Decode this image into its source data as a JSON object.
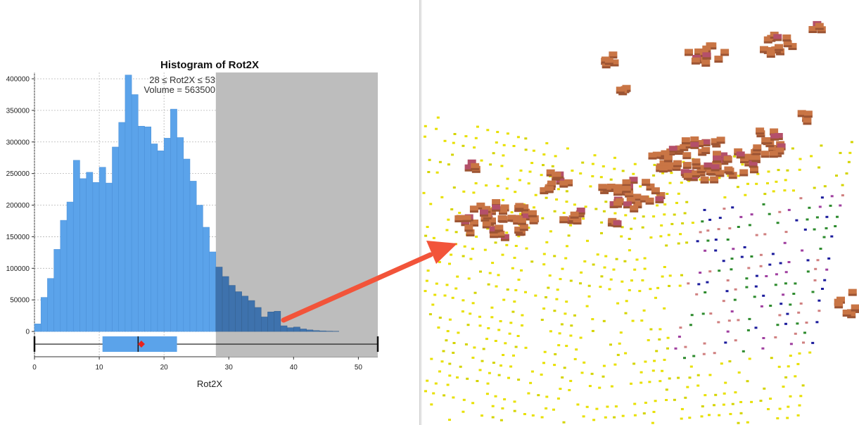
{
  "chart_data": {
    "type": "bar",
    "title": "Histogram of Rot2X",
    "xlabel": "Rot2X",
    "ylabel": "",
    "annotation": {
      "range_text": "28 ≤ Rot2X ≤ 53",
      "volume_text": "Volume = 563500"
    },
    "xlim": [
      0,
      53
    ],
    "ylim": [
      -40000,
      410000
    ],
    "xticks": [
      0,
      10,
      20,
      30,
      40,
      50
    ],
    "yticks": [
      0,
      50000,
      100000,
      150000,
      200000,
      250000,
      300000,
      350000,
      400000
    ],
    "grid": true,
    "bin_width": 1,
    "bin_starts": [
      0,
      1,
      2,
      3,
      4,
      5,
      6,
      7,
      8,
      9,
      10,
      11,
      12,
      13,
      14,
      15,
      16,
      17,
      18,
      19,
      20,
      21,
      22,
      23,
      24,
      25,
      26,
      27,
      28,
      29,
      30,
      31,
      32,
      33,
      34,
      35,
      36,
      37,
      38,
      39,
      40,
      41,
      42,
      43,
      44,
      45,
      46
    ],
    "values": [
      12000,
      54000,
      84000,
      130000,
      176000,
      205000,
      271000,
      242000,
      252000,
      236000,
      260000,
      235000,
      292000,
      331000,
      406000,
      375000,
      325000,
      324000,
      297000,
      286000,
      306000,
      352000,
      307000,
      273000,
      238000,
      200000,
      165000,
      126000,
      102000,
      87000,
      73000,
      63000,
      56000,
      49000,
      38000,
      23000,
      31000,
      32000,
      9000,
      6000,
      7000,
      4000,
      2500,
      1500,
      1000,
      600,
      400
    ],
    "selection": {
      "min": 28,
      "max": 53,
      "color": "#bdbdbd"
    },
    "bar_color": "#5ba3ea",
    "selected_bar_color": "#3e72ad",
    "boxplot": {
      "whisker_low": 0,
      "q1": 10.5,
      "median": 16,
      "mean": 16.5,
      "q3": 22,
      "whisker_high": 53,
      "box_color": "#5ba3ea",
      "mean_marker_color": "#e8231e"
    }
  },
  "arrow": {
    "color": "#f2543a"
  },
  "scene": {
    "blob_color": "#c97545",
    "blob_dark_color": "#9c5433",
    "blob_highlight_color": "#b4506a",
    "point_colors": [
      "#e8e000",
      "#d4d400",
      "#2e8b2e",
      "#1c1c9c",
      "#a040a0",
      "#d08080"
    ]
  }
}
